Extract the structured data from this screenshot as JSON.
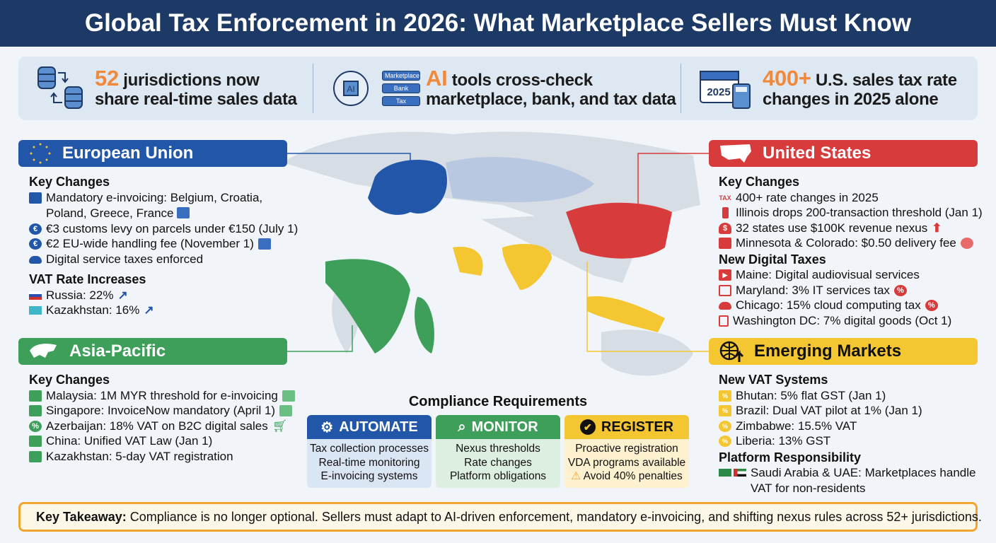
{
  "title": "Global Tax Enforcement in 2026: What Marketplace Sellers Must Know",
  "stats": [
    {
      "icon": "database-sync-icon",
      "highlight": "52",
      "line1": "jurisdictions now",
      "line2": "share real-time sales data"
    },
    {
      "icon": "ai-brain-icon",
      "labels": [
        "Marketplace",
        "Bank",
        "Tax"
      ],
      "chip": "AI",
      "highlight": "AI",
      "line1": "tools cross-check",
      "line2": "marketplace, bank, and tax data"
    },
    {
      "icon": "calendar-calculator-icon",
      "calendar_year": "2025",
      "highlight": "400+",
      "line1": "U.S. sales tax rate",
      "line2": "changes in 2025 alone"
    }
  ],
  "colors": {
    "eu": "#2256a8",
    "asia": "#3d9f5a",
    "us": "#d83b3b",
    "emerging": "#f4c631",
    "title_bg": "#1d3a66",
    "accent": "#ef8a3c"
  },
  "eu": {
    "title": "European Union",
    "h1": "Key Changes",
    "items": [
      {
        "icon": "calendar-icon",
        "text": "Mandatory e-invoicing: Belgium, Croatia,",
        "text2": "Poland, Greece, France"
      },
      {
        "icon": "euro-icon",
        "text": "€3 customs levy on parcels under €150 (July 1)"
      },
      {
        "icon": "euro-icon",
        "text": "€2 EU-wide handling fee (November 1)"
      },
      {
        "icon": "cloud-icon",
        "text": "Digital service taxes enforced"
      }
    ],
    "h2": "VAT Rate Increases",
    "rates": [
      {
        "icon": "russia-flag-icon",
        "text": "Russia: 22%"
      },
      {
        "icon": "kazakhstan-flag-icon",
        "text": "Kazakhstan: 16%"
      }
    ]
  },
  "asia": {
    "title": "Asia-Pacific",
    "h1": "Key Changes",
    "items": [
      {
        "icon": "money-icon",
        "text": "Malaysia: 1M MYR threshold for e-invoicing"
      },
      {
        "icon": "document-icon",
        "text": "Singapore: InvoiceNow mandatory (April 1)"
      },
      {
        "icon": "percent-badge-icon",
        "text": "Azerbaijan: 18% VAT on B2C digital sales"
      },
      {
        "icon": "book-icon",
        "text": "China: Unified VAT Law (Jan 1)"
      },
      {
        "icon": "calendar-icon",
        "text": "Kazakhstan: 5-day VAT registration"
      }
    ]
  },
  "us": {
    "title": "United States",
    "h1": "Key Changes",
    "items": [
      {
        "icon": "tax-chart-icon",
        "text": "400+ rate changes in 2025"
      },
      {
        "icon": "illinois-icon",
        "text": "Illinois drops 200-transaction threshold (Jan 1)"
      },
      {
        "icon": "money-bag-icon",
        "text": "32 states use $100K revenue nexus"
      },
      {
        "icon": "minnesota-icon",
        "text": "Minnesota & Colorado: $0.50 delivery fee"
      }
    ],
    "h2": "New Digital Taxes",
    "digital": [
      {
        "icon": "play-icon",
        "text": "Maine: Digital audiovisual services"
      },
      {
        "icon": "chip-icon",
        "text": "Maryland: 3% IT services tax"
      },
      {
        "icon": "cloud-icon",
        "text": "Chicago: 15% cloud computing tax"
      },
      {
        "icon": "tablet-icon",
        "text": "Washington DC: 7% digital goods (Oct 1)"
      }
    ]
  },
  "emerging": {
    "title": "Emerging Markets",
    "h1": "New VAT Systems",
    "items": [
      {
        "icon": "calendar-percent-icon",
        "text": "Bhutan: 5% flat GST (Jan 1)"
      },
      {
        "icon": "calendar-percent-icon",
        "text": "Brazil: Dual VAT pilot at 1% (Jan 1)"
      },
      {
        "icon": "percent-badge-icon",
        "text": "Zimbabwe: 15.5% VAT"
      },
      {
        "icon": "percent-badge-icon",
        "text": "Liberia: 13% GST"
      }
    ],
    "h2": "Platform Responsibility",
    "platform": {
      "icon": "saudi-uae-flags-icon",
      "text": "Saudi Arabia & UAE: Marketplaces handle",
      "text2": "VAT for non-residents"
    }
  },
  "compliance": {
    "title": "Compliance Requirements",
    "boxes": [
      {
        "icon": "gear-icon",
        "label": "AUTOMATE",
        "lines": [
          "Tax collection processes",
          "Real-time monitoring",
          "E-invoicing systems"
        ]
      },
      {
        "icon": "search-icon",
        "label": "MONITOR",
        "lines": [
          "Nexus thresholds",
          "Rate changes",
          "Platform obligations"
        ]
      },
      {
        "icon": "check-circle-icon",
        "label": "REGISTER",
        "lines": [
          "Proactive registration",
          "VDA programs available",
          "Avoid 40% penalties"
        ]
      }
    ]
  },
  "takeaway": {
    "icon": "warning-icon",
    "label": "Key Takeaway:",
    "text": "Compliance is no longer optional. Sellers must adapt to AI-driven enforcement, mandatory e-invoicing, and shifting nexus rules across 52+ jurisdictions."
  }
}
